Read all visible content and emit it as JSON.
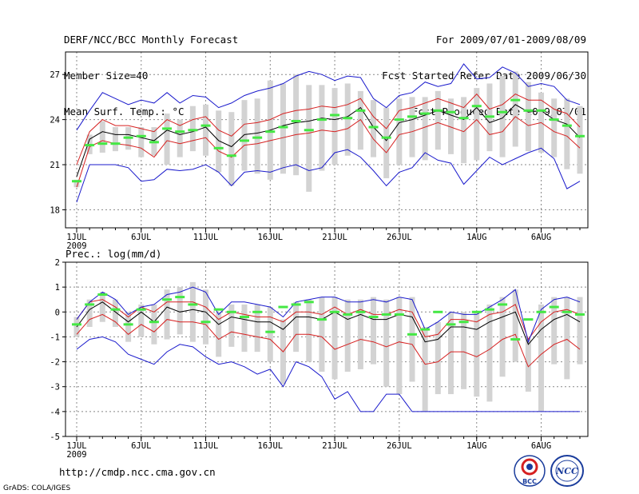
{
  "header": {
    "left": [
      "DERF/NCC/BCC Monthly Forecast",
      "Member Size=40",
      "Mean Surf. Temp.: °C"
    ],
    "right": [
      "For 2009/07/01-2009/08/09",
      "Fcst Started Refer Date 2009/06/30",
      "Fcst Produced Date 2009/07/01"
    ]
  },
  "footer": {
    "url": "http://cmdp.ncc.cma.gov.cn",
    "credit": "GrADS: COLA/IGES"
  },
  "logos": {
    "left": "BCC",
    "right": "NCC"
  },
  "colors": {
    "spread_box": "#d3d3d3",
    "median_bar": "#44e844",
    "mean": "#000000",
    "inner_band": "#d62020",
    "outer_band": "#1a1acc",
    "grid": "#888888"
  },
  "chart_data": [
    {
      "type": "line",
      "title": "Mean Surf. Temp.: °C",
      "xlabel": "",
      "ylabel": "",
      "x_tick_labels": [
        "1JUL",
        "6JUL",
        "11JUL",
        "16JUL",
        "21JUL",
        "26JUL",
        "1AUG",
        "6AUG"
      ],
      "x_sub_label": "2009",
      "x_tick_days": [
        1,
        6,
        11,
        16,
        21,
        26,
        32,
        37
      ],
      "ylim": [
        16.8,
        28.5
      ],
      "y_ticks": [
        18,
        21,
        24,
        27
      ],
      "x_days": [
        1,
        2,
        3,
        4,
        5,
        6,
        7,
        8,
        9,
        10,
        11,
        12,
        13,
        14,
        15,
        16,
        17,
        18,
        19,
        20,
        21,
        22,
        23,
        24,
        25,
        26,
        27,
        28,
        29,
        30,
        31,
        32,
        33,
        34,
        35,
        36,
        37,
        38,
        39,
        40
      ],
      "series": [
        {
          "name": "ensemble mean",
          "values": [
            20.2,
            22.7,
            23.2,
            23.0,
            23.0,
            22.8,
            22.6,
            23.3,
            23.0,
            23.2,
            23.5,
            22.6,
            22.2,
            23.0,
            23.1,
            23.3,
            23.6,
            23.8,
            23.9,
            24.1,
            24.0,
            24.2,
            24.8,
            23.5,
            22.6,
            23.8,
            24.0,
            24.3,
            24.6,
            24.3,
            24.0,
            24.8,
            23.8,
            24.1,
            25.0,
            24.5,
            24.6,
            24.0,
            23.7,
            22.8
          ]
        },
        {
          "name": "upper 1-sigma",
          "values": [
            21.0,
            23.2,
            24.0,
            23.6,
            23.6,
            23.4,
            23.2,
            24.0,
            23.6,
            24.0,
            24.2,
            23.3,
            22.9,
            23.7,
            23.8,
            24.0,
            24.4,
            24.6,
            24.7,
            24.9,
            24.8,
            25.0,
            25.4,
            24.2,
            23.4,
            24.6,
            24.8,
            25.1,
            25.4,
            25.1,
            24.8,
            25.7,
            24.7,
            25.0,
            25.7,
            25.3,
            25.3,
            24.7,
            24.4,
            23.5
          ]
        },
        {
          "name": "lower 1-sigma",
          "values": [
            19.5,
            22.2,
            22.6,
            22.4,
            22.3,
            22.1,
            21.5,
            22.6,
            22.4,
            22.6,
            22.8,
            21.9,
            21.5,
            22.3,
            22.4,
            22.6,
            22.8,
            23.0,
            23.1,
            23.3,
            23.2,
            23.4,
            24.0,
            22.7,
            21.8,
            23.0,
            23.2,
            23.5,
            23.8,
            23.5,
            23.2,
            24.0,
            23.0,
            23.2,
            24.2,
            23.6,
            23.8,
            23.2,
            22.9,
            22.1
          ]
        },
        {
          "name": "ensemble max",
          "values": [
            23.3,
            24.6,
            25.8,
            25.4,
            25.0,
            25.3,
            25.1,
            25.8,
            25.1,
            25.6,
            25.5,
            24.8,
            25.1,
            25.6,
            25.9,
            26.1,
            26.4,
            26.9,
            27.2,
            27.0,
            26.6,
            26.9,
            26.8,
            25.4,
            24.8,
            25.6,
            25.8,
            26.5,
            26.2,
            26.4,
            27.7,
            26.7,
            26.8,
            27.5,
            27.1,
            26.2,
            26.4,
            26.2,
            25.3,
            25.0
          ]
        },
        {
          "name": "ensemble min",
          "values": [
            18.5,
            21.0,
            21.0,
            21.0,
            20.8,
            19.9,
            20.0,
            20.7,
            20.6,
            20.7,
            21.0,
            20.5,
            19.6,
            20.5,
            20.6,
            20.5,
            20.8,
            21.0,
            20.6,
            20.8,
            21.8,
            22.0,
            21.5,
            20.6,
            19.6,
            20.5,
            20.8,
            21.8,
            21.3,
            21.1,
            19.7,
            20.6,
            21.5,
            21.0,
            21.4,
            21.8,
            22.1,
            21.4,
            19.4,
            19.9
          ]
        }
      ],
      "box_low": [
        19.5,
        21.7,
        21.8,
        21.9,
        22.0,
        21.5,
        21.6,
        21.0,
        21.5,
        21.9,
        21.6,
        20.5,
        19.6,
        20.6,
        20.4,
        20.0,
        20.4,
        20.3,
        19.2,
        20.6,
        21.0,
        21.6,
        22.0,
        21.5,
        20.1,
        21.0,
        21.5,
        21.3,
        22.0,
        21.7,
        21.1,
        21.3,
        21.9,
        21.5,
        22.2,
        21.9,
        21.8,
        21.5,
        20.7,
        20.4
      ],
      "box_high": [
        20.0,
        23.0,
        23.9,
        23.5,
        23.5,
        23.5,
        23.5,
        24.4,
        24.0,
        24.9,
        25.0,
        24.6,
        24.5,
        25.3,
        25.4,
        26.6,
        26.4,
        27.0,
        26.3,
        26.3,
        26.1,
        26.4,
        25.9,
        25.3,
        24.8,
        25.4,
        25.5,
        25.5,
        25.9,
        25.4,
        25.5,
        26.1,
        26.4,
        26.9,
        27.2,
        26.5,
        25.8,
        25.4,
        25.4,
        24.9
      ],
      "median": [
        19.9,
        22.3,
        22.4,
        22.4,
        22.8,
        22.9,
        22.5,
        23.4,
        23.2,
        23.3,
        23.6,
        22.1,
        21.6,
        22.6,
        22.8,
        23.2,
        23.5,
        23.9,
        23.3,
        24.0,
        24.3,
        24.1,
        24.6,
        23.5,
        22.8,
        24.0,
        24.2,
        24.4,
        24.6,
        24.5,
        24.1,
        24.9,
        24.2,
        24.5,
        25.3,
        24.6,
        24.6,
        24.0,
        23.6,
        22.9
      ]
    },
    {
      "type": "line",
      "title": "Prec.: log(mm/d)",
      "xlabel": "",
      "ylabel": "",
      "x_tick_labels": [
        "1JUL",
        "6JUL",
        "11JUL",
        "16JUL",
        "21JUL",
        "26JUL",
        "1AUG",
        "6AUG"
      ],
      "x_sub_label": "2009",
      "x_tick_days": [
        1,
        6,
        11,
        16,
        21,
        26,
        32,
        37
      ],
      "ylim": [
        -5,
        2
      ],
      "y_ticks": [
        -5,
        -4,
        -3,
        -2,
        -1,
        0,
        1,
        2
      ],
      "x_days": [
        1,
        2,
        3,
        4,
        5,
        6,
        7,
        8,
        9,
        10,
        11,
        12,
        13,
        14,
        15,
        16,
        17,
        18,
        19,
        20,
        21,
        22,
        23,
        24,
        25,
        26,
        27,
        28,
        29,
        30,
        31,
        32,
        33,
        34,
        35,
        36,
        37,
        38,
        39,
        40
      ],
      "series": [
        {
          "name": "ensemble mean",
          "values": [
            -0.6,
            0.1,
            0.4,
            0.0,
            -0.4,
            0.0,
            -0.4,
            0.2,
            0.0,
            0.1,
            0.0,
            -0.5,
            -0.2,
            -0.3,
            -0.4,
            -0.4,
            -0.7,
            -0.2,
            -0.2,
            -0.3,
            0.0,
            -0.3,
            -0.1,
            -0.3,
            -0.3,
            -0.1,
            -0.2,
            -1.2,
            -1.1,
            -0.6,
            -0.6,
            -0.7,
            -0.4,
            -0.2,
            0.0,
            -1.3,
            -0.7,
            -0.3,
            -0.1,
            -0.4
          ]
        },
        {
          "name": "upper 1-sigma",
          "values": [
            -0.3,
            0.4,
            0.5,
            0.2,
            -0.2,
            0.2,
            0.0,
            0.4,
            0.4,
            0.4,
            0.2,
            -0.3,
            0.0,
            -0.1,
            -0.2,
            -0.2,
            -0.4,
            0.0,
            0.0,
            -0.1,
            0.2,
            -0.1,
            0.1,
            -0.1,
            -0.1,
            0.1,
            0.0,
            -1.0,
            -0.9,
            -0.3,
            -0.3,
            -0.4,
            -0.1,
            0.0,
            0.3,
            -1.1,
            -0.4,
            0.0,
            0.1,
            -0.1
          ]
        },
        {
          "name": "lower 1-sigma",
          "values": [
            -0.9,
            -0.3,
            -0.1,
            -0.4,
            -0.9,
            -0.5,
            -0.8,
            -0.3,
            -0.4,
            -0.4,
            -0.5,
            -1.1,
            -0.8,
            -0.9,
            -1.0,
            -1.1,
            -1.6,
            -0.9,
            -0.9,
            -1.0,
            -1.5,
            -1.3,
            -1.1,
            -1.2,
            -1.4,
            -1.2,
            -1.3,
            -2.1,
            -2.0,
            -1.6,
            -1.6,
            -1.8,
            -1.5,
            -1.1,
            -0.9,
            -2.2,
            -1.7,
            -1.3,
            -1.1,
            -1.5
          ]
        },
        {
          "name": "ensemble max",
          "values": [
            -0.3,
            0.4,
            0.8,
            0.5,
            -0.1,
            0.2,
            0.3,
            0.7,
            0.8,
            1.0,
            0.8,
            -0.1,
            0.4,
            0.4,
            0.3,
            0.2,
            -0.2,
            0.4,
            0.5,
            0.6,
            0.6,
            0.4,
            0.4,
            0.5,
            0.4,
            0.6,
            0.5,
            -0.7,
            -0.4,
            0.0,
            -0.1,
            -0.1,
            0.2,
            0.5,
            0.9,
            -1.2,
            0.1,
            0.5,
            0.6,
            0.4
          ]
        },
        {
          "name": "ensemble min",
          "values": [
            -1.5,
            -1.1,
            -1.0,
            -1.2,
            -1.7,
            -1.9,
            -2.1,
            -1.6,
            -1.3,
            -1.4,
            -1.8,
            -2.1,
            -2.0,
            -2.2,
            -2.5,
            -2.3,
            -3.0,
            -2.0,
            -2.2,
            -2.6,
            -3.5,
            -3.2,
            -4.0,
            -4.0,
            -3.3,
            -3.3,
            -4.0,
            -4.0,
            -4.0,
            -4.0,
            -4.0,
            -4.0,
            -4.0,
            -4.0,
            -4.0,
            -4.0,
            -4.0,
            -4.0,
            -4.0,
            -4.0
          ]
        }
      ],
      "box_low": [
        -1.0,
        -0.6,
        -0.4,
        -0.6,
        -1.2,
        -1.0,
        -1.3,
        -1.1,
        -0.9,
        -1.2,
        -1.3,
        -1.8,
        -1.4,
        -1.6,
        -1.6,
        -2.0,
        -2.9,
        -1.6,
        -2.0,
        -2.4,
        -2.7,
        -2.4,
        -2.3,
        -2.1,
        -3.0,
        -3.3,
        -2.8,
        -4.0,
        -3.3,
        -3.3,
        -3.1,
        -3.4,
        -3.6,
        -2.6,
        -2.0,
        -3.2,
        -4.0,
        -2.1,
        -2.7,
        -2.1
      ],
      "box_high": [
        -0.2,
        0.5,
        0.8,
        0.5,
        0.0,
        0.3,
        0.3,
        0.9,
        1.0,
        1.2,
        0.9,
        0.0,
        0.3,
        0.3,
        0.3,
        0.2,
        -0.3,
        0.4,
        0.5,
        0.6,
        0.6,
        0.5,
        0.5,
        0.6,
        0.5,
        0.6,
        0.6,
        -0.6,
        -0.4,
        0.0,
        0.0,
        0.0,
        0.3,
        0.6,
        0.9,
        -1.1,
        0.3,
        0.6,
        0.6,
        0.6
      ],
      "median": [
        -0.5,
        0.3,
        0.7,
        0.1,
        -0.5,
        0.1,
        -0.4,
        0.5,
        0.6,
        0.3,
        -0.4,
        0.1,
        0.0,
        -0.2,
        0.0,
        -0.8,
        0.2,
        0.3,
        0.4,
        -0.3,
        0.0,
        -0.1,
        0.0,
        -0.2,
        -0.1,
        -0.1,
        -0.9,
        -0.7,
        0.0,
        -0.5,
        -0.4,
        0.0,
        0.1,
        0.3,
        -1.1,
        -0.3,
        0.0,
        0.2,
        0.0,
        -0.1
      ]
    }
  ]
}
